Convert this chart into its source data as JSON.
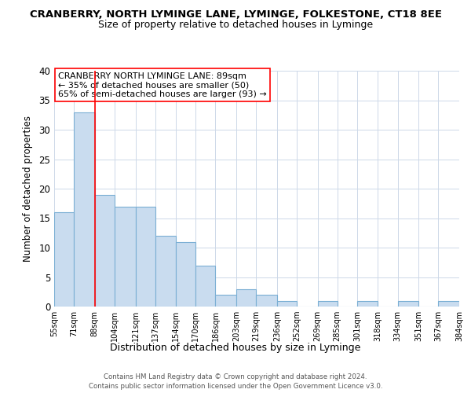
{
  "title": "CRANBERRY, NORTH LYMINGE LANE, LYMINGE, FOLKESTONE, CT18 8EE",
  "subtitle": "Size of property relative to detached houses in Lyminge",
  "xlabel": "Distribution of detached houses by size in Lyminge",
  "ylabel": "Number of detached properties",
  "bins": [
    55,
    71,
    88,
    104,
    121,
    137,
    154,
    170,
    186,
    203,
    219,
    236,
    252,
    269,
    285,
    301,
    318,
    334,
    351,
    367,
    384
  ],
  "counts": [
    16,
    33,
    19,
    17,
    17,
    12,
    11,
    7,
    2,
    3,
    2,
    1,
    0,
    1,
    0,
    1,
    0,
    1,
    0,
    1
  ],
  "tick_labels": [
    "55sqm",
    "71sqm",
    "88sqm",
    "104sqm",
    "121sqm",
    "137sqm",
    "154sqm",
    "170sqm",
    "186sqm",
    "203sqm",
    "219sqm",
    "236sqm",
    "252sqm",
    "269sqm",
    "285sqm",
    "301sqm",
    "318sqm",
    "334sqm",
    "351sqm",
    "367sqm",
    "384sqm"
  ],
  "bar_color": "#c9dcef",
  "bar_edge_color": "#7bafd4",
  "reference_line_x": 88,
  "reference_line_color": "red",
  "ylim": [
    0,
    40
  ],
  "yticks": [
    0,
    5,
    10,
    15,
    20,
    25,
    30,
    35,
    40
  ],
  "annotation_title": "CRANBERRY NORTH LYMINGE LANE: 89sqm",
  "annotation_line1": "← 35% of detached houses are smaller (50)",
  "annotation_line2": "65% of semi-detached houses are larger (93) →",
  "footer_line1": "Contains HM Land Registry data © Crown copyright and database right 2024.",
  "footer_line2": "Contains public sector information licensed under the Open Government Licence v3.0.",
  "bg_color": "#ffffff",
  "grid_color": "#cdd8e8"
}
